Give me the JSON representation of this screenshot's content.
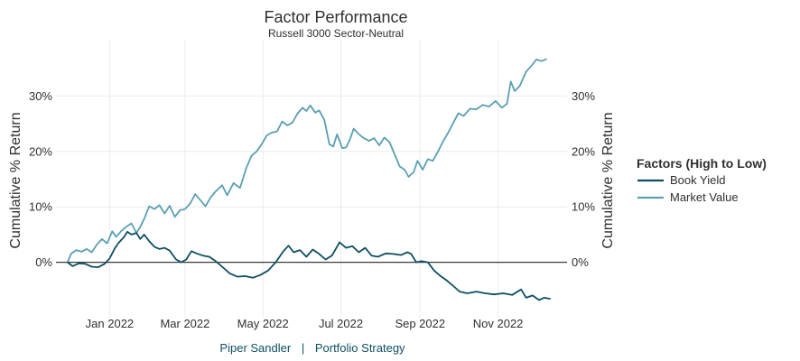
{
  "colors": {
    "book_yield": "#0e4f61",
    "market_value": "#5b9fb3",
    "grid": "#ececec",
    "zero_line": "#3a3a3a",
    "footer": "#0e4f61"
  },
  "footer": {
    "left": "Piper Sandler",
    "separator": "|",
    "right": "Portfolio Strategy"
  },
  "chart_data": {
    "type": "line",
    "title": "Factor Performance",
    "subtitle": "Russell 3000 Sector-Neutral",
    "ylabel_left": "Cumulative % Return",
    "ylabel_right": "Cumulative % Return",
    "xlabel": "",
    "x_ticks": [
      "Jan 2022",
      "Mar 2022",
      "May 2022",
      "Jul 2022",
      "Sep 2022",
      "Nov 2022"
    ],
    "y_ticks": [
      "0%",
      "10%",
      "20%",
      "30%"
    ],
    "y_tick_values": [
      0,
      10,
      20,
      30
    ],
    "ylim": [
      -10,
      40
    ],
    "xlim": [
      "2021-11-20",
      "2022-12-25"
    ],
    "grid": true,
    "legend": {
      "title": "Factors (High to Low)",
      "placement": "right"
    },
    "series": [
      {
        "name": "Book Yield",
        "color": "#0e4f61",
        "points": [
          [
            "2021-11-29",
            0
          ],
          [
            "2021-12-03",
            -0.7
          ],
          [
            "2021-12-08",
            -0.2
          ],
          [
            "2021-12-13",
            -0.3
          ],
          [
            "2021-12-18",
            -0.8
          ],
          [
            "2021-12-23",
            -0.9
          ],
          [
            "2021-12-28",
            -0.3
          ],
          [
            "2022-01-01",
            0.7
          ],
          [
            "2022-01-05",
            2.5
          ],
          [
            "2022-01-08",
            3.5
          ],
          [
            "2022-01-12",
            4.5
          ],
          [
            "2022-01-15",
            5.5
          ],
          [
            "2022-01-18",
            5.0
          ],
          [
            "2022-01-22",
            5.3
          ],
          [
            "2022-01-25",
            4.2
          ],
          [
            "2022-01-28",
            5.0
          ],
          [
            "2022-02-01",
            3.8
          ],
          [
            "2022-02-05",
            2.8
          ],
          [
            "2022-02-09",
            2.4
          ],
          [
            "2022-02-13",
            2.6
          ],
          [
            "2022-02-17",
            2.1
          ],
          [
            "2022-02-22",
            0.5
          ],
          [
            "2022-02-26",
            0.0
          ],
          [
            "2022-03-02",
            0.5
          ],
          [
            "2022-03-06",
            2.0
          ],
          [
            "2022-03-10",
            1.6
          ],
          [
            "2022-03-15",
            1.2
          ],
          [
            "2022-03-20",
            1.0
          ],
          [
            "2022-03-25",
            0.2
          ],
          [
            "2022-03-30",
            -0.8
          ],
          [
            "2022-04-05",
            -2.0
          ],
          [
            "2022-04-11",
            -2.6
          ],
          [
            "2022-04-17",
            -2.5
          ],
          [
            "2022-04-23",
            -2.8
          ],
          [
            "2022-04-29",
            -2.3
          ],
          [
            "2022-05-05",
            -1.5
          ],
          [
            "2022-05-11",
            0.0
          ],
          [
            "2022-05-17",
            2.0
          ],
          [
            "2022-05-21",
            3.0
          ],
          [
            "2022-05-25",
            1.8
          ],
          [
            "2022-05-30",
            2.2
          ],
          [
            "2022-06-04",
            1.0
          ],
          [
            "2022-06-09",
            2.3
          ],
          [
            "2022-06-14",
            1.5
          ],
          [
            "2022-06-19",
            0.5
          ],
          [
            "2022-06-24",
            1.2
          ],
          [
            "2022-06-30",
            3.6
          ],
          [
            "2022-07-05",
            2.6
          ],
          [
            "2022-07-10",
            2.9
          ],
          [
            "2022-07-15",
            1.8
          ],
          [
            "2022-07-20",
            2.6
          ],
          [
            "2022-07-25",
            1.2
          ],
          [
            "2022-07-30",
            1.0
          ],
          [
            "2022-08-05",
            1.6
          ],
          [
            "2022-08-11",
            1.5
          ],
          [
            "2022-08-17",
            1.3
          ],
          [
            "2022-08-22",
            1.8
          ],
          [
            "2022-08-25",
            1.5
          ],
          [
            "2022-08-29",
            0.0
          ],
          [
            "2022-09-02",
            0.2
          ],
          [
            "2022-09-07",
            0.0
          ],
          [
            "2022-09-12",
            -1.5
          ],
          [
            "2022-09-17",
            -2.5
          ],
          [
            "2022-09-22",
            -3.3
          ],
          [
            "2022-09-27",
            -4.3
          ],
          [
            "2022-10-02",
            -5.3
          ],
          [
            "2022-10-08",
            -5.6
          ],
          [
            "2022-10-15",
            -5.3
          ],
          [
            "2022-10-22",
            -5.6
          ],
          [
            "2022-10-29",
            -5.8
          ],
          [
            "2022-11-05",
            -5.6
          ],
          [
            "2022-11-12",
            -5.9
          ],
          [
            "2022-11-19",
            -4.9
          ],
          [
            "2022-11-23",
            -6.4
          ],
          [
            "2022-11-28",
            -6.0
          ],
          [
            "2022-12-03",
            -6.8
          ],
          [
            "2022-12-07",
            -6.4
          ],
          [
            "2022-12-12",
            -6.6
          ]
        ]
      },
      {
        "name": "Market Value",
        "color": "#5b9fb3",
        "points": [
          [
            "2021-11-29",
            0
          ],
          [
            "2021-12-02",
            1.6
          ],
          [
            "2021-12-06",
            2.2
          ],
          [
            "2021-12-10",
            1.9
          ],
          [
            "2021-12-14",
            2.4
          ],
          [
            "2021-12-18",
            1.8
          ],
          [
            "2021-12-22",
            3.2
          ],
          [
            "2021-12-26",
            4.2
          ],
          [
            "2021-12-30",
            3.4
          ],
          [
            "2022-01-03",
            5.6
          ],
          [
            "2022-01-06",
            4.6
          ],
          [
            "2022-01-10",
            5.6
          ],
          [
            "2022-01-14",
            6.4
          ],
          [
            "2022-01-18",
            7.0
          ],
          [
            "2022-01-22",
            5.3
          ],
          [
            "2022-01-25",
            6.4
          ],
          [
            "2022-01-28",
            7.8
          ],
          [
            "2022-02-01",
            10.1
          ],
          [
            "2022-02-05",
            9.6
          ],
          [
            "2022-02-09",
            10.3
          ],
          [
            "2022-02-13",
            8.8
          ],
          [
            "2022-02-17",
            10.2
          ],
          [
            "2022-02-21",
            8.2
          ],
          [
            "2022-02-25",
            9.4
          ],
          [
            "2022-03-01",
            9.6
          ],
          [
            "2022-03-05",
            10.6
          ],
          [
            "2022-03-09",
            12.3
          ],
          [
            "2022-03-13",
            11.2
          ],
          [
            "2022-03-17",
            10.1
          ],
          [
            "2022-03-21",
            11.7
          ],
          [
            "2022-03-25",
            12.8
          ],
          [
            "2022-03-30",
            13.9
          ],
          [
            "2022-04-03",
            12.1
          ],
          [
            "2022-04-08",
            14.3
          ],
          [
            "2022-04-13",
            13.4
          ],
          [
            "2022-04-18",
            17.0
          ],
          [
            "2022-04-22",
            19.2
          ],
          [
            "2022-04-26",
            20.0
          ],
          [
            "2022-04-30",
            21.3
          ],
          [
            "2022-05-04",
            22.9
          ],
          [
            "2022-05-08",
            23.4
          ],
          [
            "2022-05-12",
            23.6
          ],
          [
            "2022-05-16",
            25.4
          ],
          [
            "2022-05-20",
            24.7
          ],
          [
            "2022-05-24",
            25.2
          ],
          [
            "2022-05-28",
            26.8
          ],
          [
            "2022-06-01",
            27.9
          ],
          [
            "2022-06-04",
            27.3
          ],
          [
            "2022-06-07",
            28.3
          ],
          [
            "2022-06-11",
            27.0
          ],
          [
            "2022-06-14",
            27.4
          ],
          [
            "2022-06-18",
            25.7
          ],
          [
            "2022-06-22",
            21.3
          ],
          [
            "2022-06-25",
            20.9
          ],
          [
            "2022-06-28",
            23.1
          ],
          [
            "2022-07-02",
            20.6
          ],
          [
            "2022-07-05",
            20.7
          ],
          [
            "2022-07-08",
            22.1
          ],
          [
            "2022-07-11",
            24.1
          ],
          [
            "2022-07-15",
            23.1
          ],
          [
            "2022-07-19",
            22.4
          ],
          [
            "2022-07-23",
            21.9
          ],
          [
            "2022-07-27",
            22.4
          ],
          [
            "2022-07-31",
            21.1
          ],
          [
            "2022-08-04",
            22.5
          ],
          [
            "2022-08-08",
            21.7
          ],
          [
            "2022-08-12",
            19.5
          ],
          [
            "2022-08-16",
            17.3
          ],
          [
            "2022-08-20",
            16.7
          ],
          [
            "2022-08-23",
            15.4
          ],
          [
            "2022-08-27",
            16.3
          ],
          [
            "2022-08-30",
            18.3
          ],
          [
            "2022-09-03",
            16.7
          ],
          [
            "2022-09-07",
            18.6
          ],
          [
            "2022-09-11",
            18.3
          ],
          [
            "2022-09-15",
            20.0
          ],
          [
            "2022-09-19",
            21.8
          ],
          [
            "2022-09-23",
            23.4
          ],
          [
            "2022-09-27",
            25.2
          ],
          [
            "2022-10-01",
            26.9
          ],
          [
            "2022-10-05",
            26.4
          ],
          [
            "2022-10-10",
            27.7
          ],
          [
            "2022-10-15",
            27.6
          ],
          [
            "2022-10-20",
            28.4
          ],
          [
            "2022-10-25",
            28.1
          ],
          [
            "2022-10-30",
            29.1
          ],
          [
            "2022-11-04",
            27.9
          ],
          [
            "2022-11-08",
            28.6
          ],
          [
            "2022-11-11",
            32.6
          ],
          [
            "2022-11-14",
            30.9
          ],
          [
            "2022-11-18",
            31.8
          ],
          [
            "2022-11-23",
            34.4
          ],
          [
            "2022-11-27",
            35.4
          ],
          [
            "2022-12-01",
            36.6
          ],
          [
            "2022-12-05",
            36.3
          ],
          [
            "2022-12-09",
            36.7
          ]
        ]
      }
    ]
  }
}
